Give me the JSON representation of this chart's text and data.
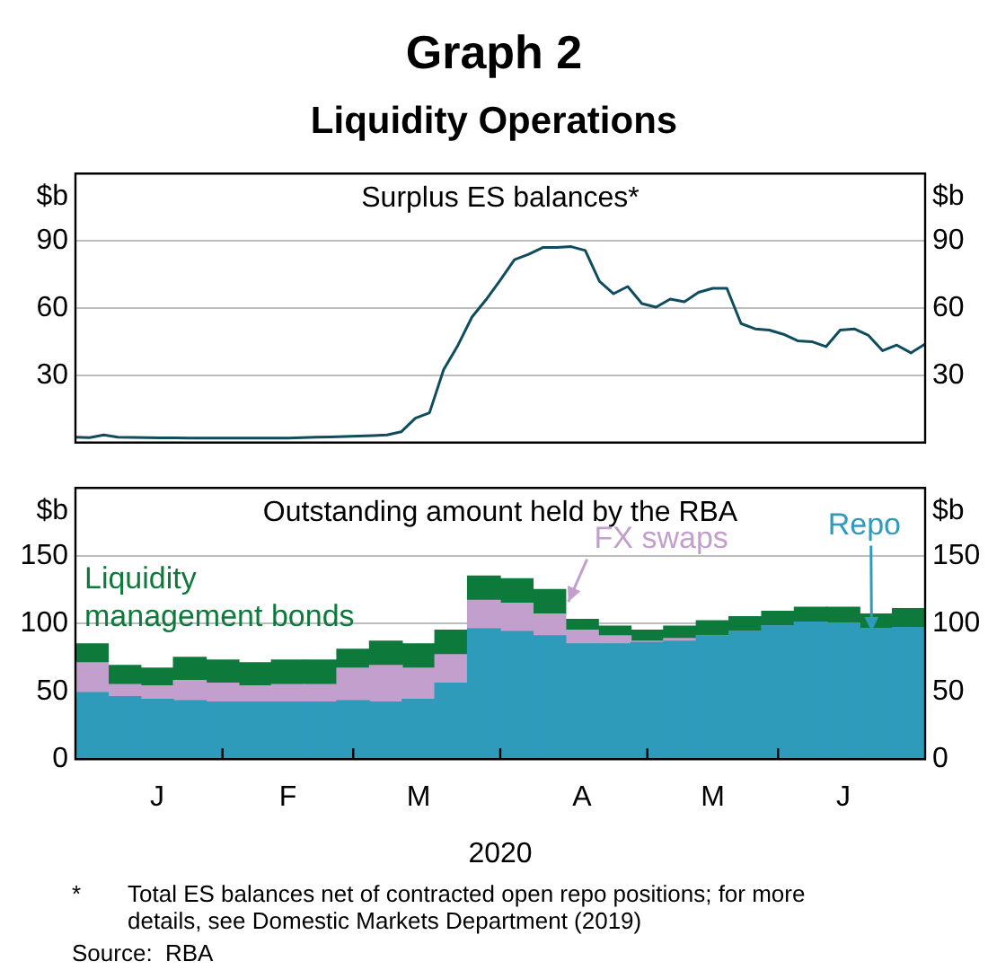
{
  "chart_data": [
    {
      "type": "line",
      "title": "Graph 2",
      "subtitle": "Liquidity Operations",
      "annotations": [
        "Surplus ES balances*"
      ],
      "ylabel": "$b",
      "y2label": "$b",
      "categories": [
        null,
        null,
        null,
        null,
        null,
        null,
        null,
        null,
        null,
        null,
        null,
        null,
        null,
        null,
        null,
        null,
        null,
        null,
        null,
        null,
        null,
        null,
        null,
        null,
        null,
        null,
        null,
        null,
        null,
        null,
        null,
        null,
        null,
        null,
        null,
        null,
        null,
        null,
        null,
        null,
        null,
        null,
        null,
        null,
        null,
        null,
        null,
        null,
        null,
        null,
        null,
        null,
        null,
        null,
        null,
        null,
        null,
        null,
        null,
        null,
        null
      ],
      "series": [
        {
          "color": "#0e4c5e",
          "values": [
            2.4,
            2.2,
            3.4,
            2.4,
            2.3,
            2.2,
            2.1,
            2.1,
            2,
            2,
            2,
            2,
            2,
            2,
            2,
            2,
            2.2,
            2.4,
            2.5,
            2.7,
            2.9,
            3.1,
            3.4,
            4.8,
            10.9,
            13.3,
            32.6,
            43.3,
            56,
            63.8,
            72.5,
            81.6,
            84,
            87,
            87,
            87.4,
            85.7,
            72,
            66.4,
            69.6,
            62,
            60.4,
            64,
            62.8,
            67,
            68.8,
            68.8,
            53.1,
            50.7,
            50.2,
            48.3,
            45.4,
            45,
            42.8,
            50.2,
            50.7,
            47.8,
            41,
            43.5,
            40,
            44
          ]
        }
      ],
      "ylim": [
        0,
        120
      ],
      "yticks": [
        30,
        60,
        90
      ],
      "y2lim": [
        0,
        120
      ],
      "y2ticks": [
        30,
        60,
        90
      ],
      "grid": "y",
      "tick_labels": "y"
    },
    {
      "type": "bar",
      "stacked": true,
      "title": "Outstanding amount held by the RBA",
      "xlabel": "2020",
      "ylabel": "$b",
      "y2label": "$b",
      "annotations": [
        "*\tTotal ES balances net of contracted open repo positions; for more details, see Domestic Markets Department (2019)",
        "Source:\tRBA"
      ],
      "categories": [
        null,
        null,
        "J",
        null,
        null,
        null,
        "F",
        null,
        null,
        null,
        "M",
        null,
        null,
        null,
        null,
        "A",
        null,
        null,
        null,
        "M",
        null,
        null,
        null,
        "J",
        null,
        null
      ],
      "series": [
        {
          "name": "Repo",
          "color": "#2e9bbb",
          "values": [
            49,
            46,
            44,
            43,
            42,
            42,
            42,
            42,
            43,
            42,
            44,
            56,
            96,
            94,
            91,
            85,
            85,
            86,
            87,
            91,
            94,
            98,
            101,
            100,
            96,
            97
          ]
        },
        {
          "name": "FX swaps",
          "color": "#c39fcd",
          "values": [
            22,
            9,
            10,
            15,
            14,
            12,
            13,
            13,
            24,
            27,
            23,
            21,
            21,
            21,
            16,
            10,
            6,
            1,
            2,
            0,
            0,
            0,
            0,
            0,
            0,
            0
          ]
        },
        {
          "name": "Liquidity management bonds",
          "color": "#0d7a3c",
          "values": [
            14,
            14,
            13,
            17,
            17,
            17,
            18,
            18,
            14,
            18,
            18,
            18,
            18,
            18,
            18,
            8,
            7,
            8,
            9,
            11,
            11,
            11,
            11,
            12,
            11,
            14
          ]
        }
      ],
      "ylim": [
        0,
        200
      ],
      "yticks": [
        0,
        50,
        100,
        150
      ],
      "y2lim": [
        0,
        200
      ],
      "y2ticks": [
        0,
        50,
        100,
        150
      ],
      "grid": "y",
      "legend": false
    }
  ]
}
